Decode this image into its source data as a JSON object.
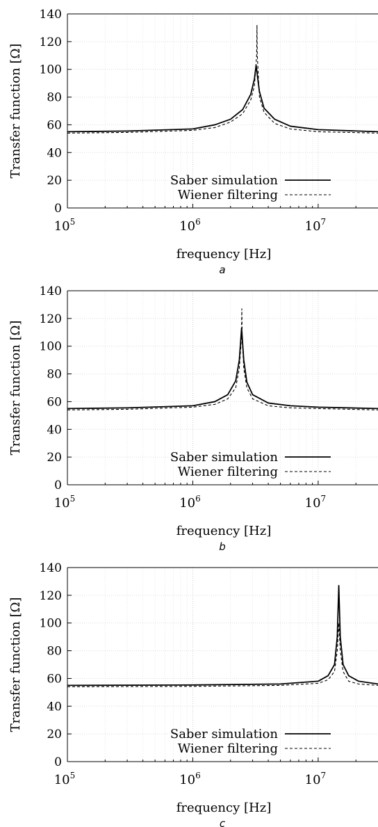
{
  "chart_data": [
    {
      "type": "line",
      "panel_label": "a",
      "xlabel": "frequency [Hz]",
      "ylabel": "Transfer function [Ω]",
      "x_scale": "log",
      "xlim": [
        100000,
        30000000
      ],
      "ylim": [
        0,
        140
      ],
      "x_ticks": [
        {
          "value": 100000,
          "base": "10",
          "exp": "5"
        },
        {
          "value": 1000000,
          "base": "10",
          "exp": "6"
        },
        {
          "value": 10000000,
          "base": "10",
          "exp": "7"
        }
      ],
      "y_ticks": [
        0,
        20,
        40,
        60,
        80,
        100,
        120,
        140
      ],
      "grid": true,
      "legend_position": "bottom-right",
      "series": [
        {
          "name": "Saber simulation",
          "style": "solid",
          "x": [
            100000,
            300000,
            1000000,
            1500000,
            2000000,
            2500000,
            2900000,
            3100000,
            3200000,
            3300000,
            3400000,
            3700000,
            4500000,
            6000000,
            10000000,
            30000000
          ],
          "y": [
            55,
            55.5,
            57,
            60,
            64,
            71,
            82,
            93,
            103,
            93,
            84,
            72,
            64,
            59,
            56.5,
            55
          ]
        },
        {
          "name": "Wiener filtering",
          "style": "dashed",
          "x": [
            100000,
            300000,
            1000000,
            1500000,
            2000000,
            2500000,
            2900000,
            3100000,
            3230000,
            3250000,
            3270000,
            3400000,
            3700000,
            4500000,
            6000000,
            10000000,
            30000000
          ],
          "y": [
            54,
            54.5,
            56,
            58,
            62,
            68,
            78,
            88,
            110,
            132,
            110,
            80,
            69,
            61,
            57,
            55,
            54
          ]
        }
      ]
    },
    {
      "type": "line",
      "panel_label": "b",
      "xlabel": "frequency [Hz]",
      "ylabel": "Transfer function [Ω]",
      "x_scale": "log",
      "xlim": [
        100000,
        30000000
      ],
      "ylim": [
        0,
        140
      ],
      "x_ticks": [
        {
          "value": 100000,
          "base": "10",
          "exp": "5"
        },
        {
          "value": 1000000,
          "base": "10",
          "exp": "6"
        },
        {
          "value": 10000000,
          "base": "10",
          "exp": "7"
        }
      ],
      "y_ticks": [
        0,
        20,
        40,
        60,
        80,
        100,
        120,
        140
      ],
      "grid": true,
      "legend_position": "bottom-right",
      "series": [
        {
          "name": "Saber simulation",
          "style": "solid",
          "x": [
            100000,
            300000,
            1000000,
            1500000,
            1900000,
            2200000,
            2350000,
            2450000,
            2550000,
            2700000,
            3000000,
            4000000,
            6000000,
            10000000,
            30000000
          ],
          "y": [
            55,
            55.5,
            57,
            60,
            65,
            75,
            90,
            113,
            90,
            74,
            65,
            59,
            57,
            56,
            55
          ]
        },
        {
          "name": "Wiener filtering",
          "style": "dashed",
          "x": [
            100000,
            300000,
            1000000,
            1500000,
            1900000,
            2200000,
            2350000,
            2440000,
            2460000,
            2480000,
            2550000,
            2700000,
            3000000,
            4000000,
            6000000,
            10000000,
            30000000
          ],
          "y": [
            54,
            54.5,
            56,
            58,
            62,
            70,
            84,
            105,
            127,
            105,
            84,
            70,
            62,
            57,
            55.5,
            55,
            54
          ]
        }
      ]
    },
    {
      "type": "line",
      "panel_label": "c",
      "xlabel": "frequency [Hz]",
      "ylabel": "Transfer function [Ω]",
      "x_scale": "log",
      "xlim": [
        100000,
        30000000
      ],
      "ylim": [
        0,
        140
      ],
      "x_ticks": [
        {
          "value": 100000,
          "base": "10",
          "exp": "5"
        },
        {
          "value": 1000000,
          "base": "10",
          "exp": "6"
        },
        {
          "value": 10000000,
          "base": "10",
          "exp": "7"
        }
      ],
      "y_ticks": [
        0,
        20,
        40,
        60,
        80,
        100,
        120,
        140
      ],
      "grid": true,
      "legend_position": "bottom-right",
      "series": [
        {
          "name": "Saber simulation",
          "style": "solid",
          "x": [
            100000,
            1000000,
            5000000,
            10000000,
            12000000,
            13500000,
            14200000,
            14600000,
            15000000,
            15800000,
            17500000,
            21000000,
            30000000
          ],
          "y": [
            55,
            55.3,
            56,
            58,
            62,
            70,
            90,
            127,
            90,
            70,
            62,
            58,
            56
          ]
        },
        {
          "name": "Wiener filtering",
          "style": "dashed",
          "x": [
            100000,
            1000000,
            5000000,
            10000000,
            12000000,
            13500000,
            14200000,
            14600000,
            15000000,
            15800000,
            17500000,
            21000000,
            30000000
          ],
          "y": [
            54,
            54.3,
            55,
            56.5,
            59,
            65,
            80,
            100,
            80,
            65,
            58,
            56,
            55
          ]
        }
      ]
    }
  ]
}
